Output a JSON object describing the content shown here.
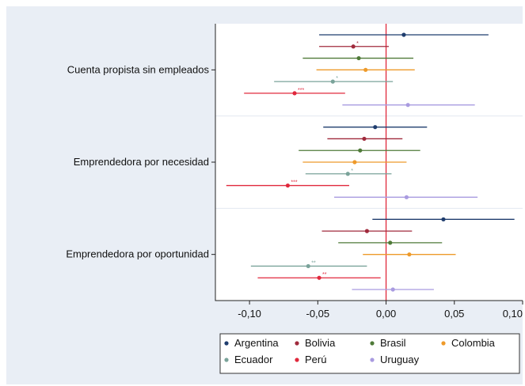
{
  "chart_data": {
    "type": "scatter",
    "orientation": "horizontal-coefficient-plot",
    "xlim": [
      -0.125,
      0.1
    ],
    "x_ticks": [
      -0.1,
      -0.05,
      0.0,
      0.05,
      0.1
    ],
    "x_tick_labels": [
      "-0,10",
      "-0,05",
      "0,00",
      "0,05",
      "0,10"
    ],
    "reference_line_x": 0,
    "reference_line_color": "#e0283c",
    "grid": false,
    "legend_position": "bottom",
    "legend_columns": 4,
    "categories": [
      "Cuenta propista sin empleados",
      "Emprendedora por necesidad",
      "Emprendedora por oportunidad"
    ],
    "series": [
      {
        "name": "Argentina",
        "color": "#1f3d6e",
        "points": [
          {
            "estimate": 0.013,
            "ci": [
              -0.049,
              0.075
            ],
            "sig": ""
          },
          {
            "estimate": -0.008,
            "ci": [
              -0.046,
              0.03
            ],
            "sig": ""
          },
          {
            "estimate": 0.042,
            "ci": [
              -0.01,
              0.094
            ],
            "sig": ""
          }
        ]
      },
      {
        "name": "Bolivia",
        "color": "#a02a3c",
        "points": [
          {
            "estimate": -0.024,
            "ci": [
              -0.049,
              0.002
            ],
            "sig": "*"
          },
          {
            "estimate": -0.016,
            "ci": [
              -0.043,
              0.012
            ],
            "sig": ""
          },
          {
            "estimate": -0.014,
            "ci": [
              -0.047,
              0.019
            ],
            "sig": ""
          }
        ]
      },
      {
        "name": "Brasil",
        "color": "#4f7a38",
        "points": [
          {
            "estimate": -0.02,
            "ci": [
              -0.061,
              0.02
            ],
            "sig": ""
          },
          {
            "estimate": -0.019,
            "ci": [
              -0.064,
              0.025
            ],
            "sig": ""
          },
          {
            "estimate": 0.003,
            "ci": [
              -0.035,
              0.041
            ],
            "sig": ""
          }
        ]
      },
      {
        "name": "Colombia",
        "color": "#ee9a2a",
        "points": [
          {
            "estimate": -0.015,
            "ci": [
              -0.051,
              0.021
            ],
            "sig": ""
          },
          {
            "estimate": -0.023,
            "ci": [
              -0.061,
              0.015
            ],
            "sig": ""
          },
          {
            "estimate": 0.017,
            "ci": [
              -0.017,
              0.051
            ],
            "sig": ""
          }
        ]
      },
      {
        "name": "Ecuador",
        "color": "#7aa39a",
        "points": [
          {
            "estimate": -0.039,
            "ci": [
              -0.082,
              0.005
            ],
            "sig": "*"
          },
          {
            "estimate": -0.028,
            "ci": [
              -0.059,
              0.004
            ],
            "sig": "*"
          },
          {
            "estimate": -0.057,
            "ci": [
              -0.099,
              -0.014
            ],
            "sig": "**"
          }
        ]
      },
      {
        "name": "Perú",
        "color": "#e0283c",
        "points": [
          {
            "estimate": -0.067,
            "ci": [
              -0.104,
              -0.03
            ],
            "sig": "***"
          },
          {
            "estimate": -0.072,
            "ci": [
              -0.117,
              -0.027
            ],
            "sig": "***"
          },
          {
            "estimate": -0.049,
            "ci": [
              -0.094,
              -0.004
            ],
            "sig": "**"
          }
        ]
      },
      {
        "name": "Uruguay",
        "color": "#a99be0",
        "points": [
          {
            "estimate": 0.016,
            "ci": [
              -0.032,
              0.065
            ],
            "sig": ""
          },
          {
            "estimate": 0.015,
            "ci": [
              -0.038,
              0.067
            ],
            "sig": ""
          },
          {
            "estimate": 0.005,
            "ci": [
              -0.025,
              0.035
            ],
            "sig": ""
          }
        ]
      }
    ]
  }
}
